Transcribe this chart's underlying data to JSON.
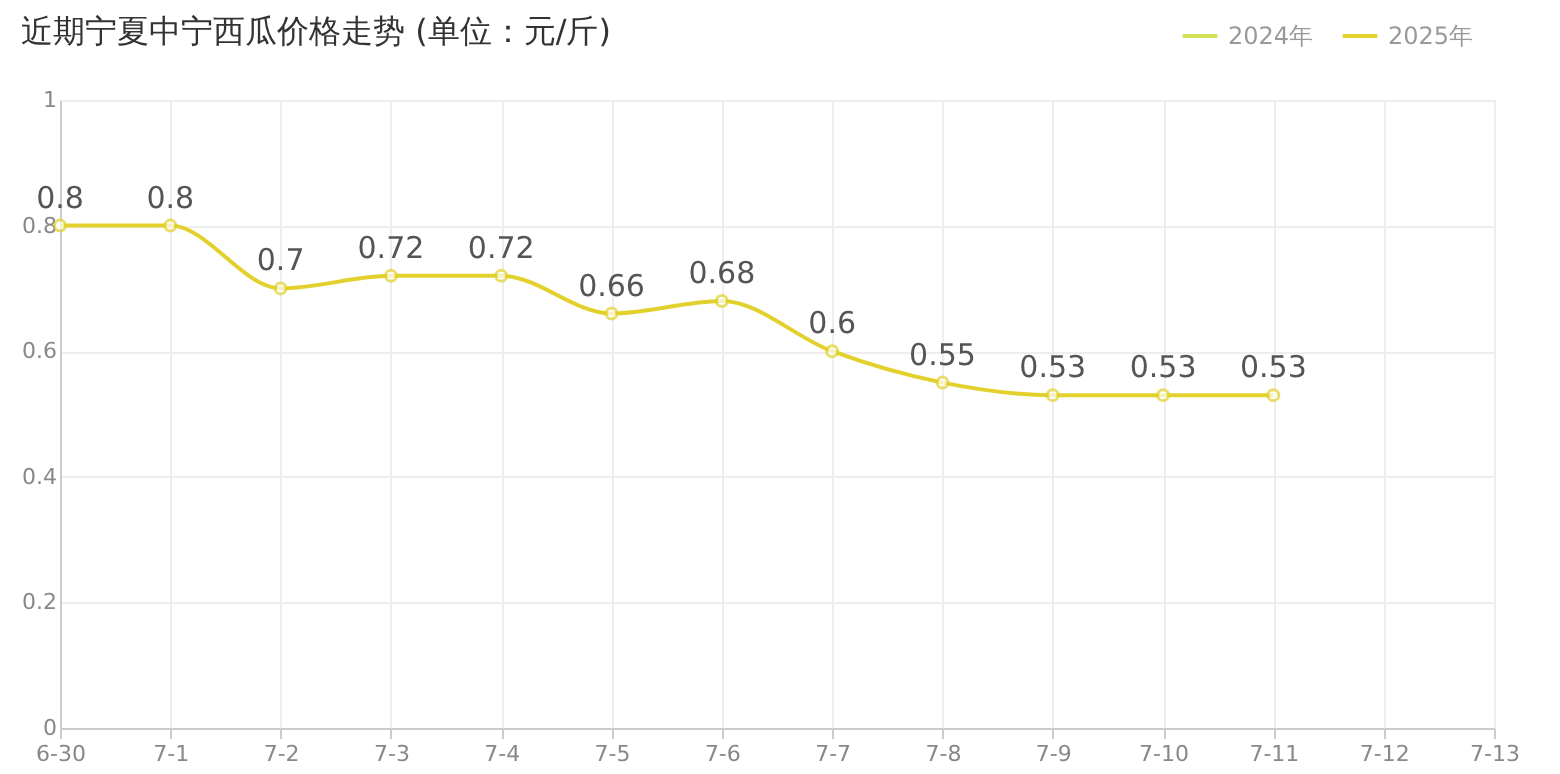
{
  "chart_data": {
    "type": "line",
    "title": "近期宁夏中宁西瓜价格走势 (单位：元/斤)",
    "categories": [
      "6-30",
      "7-1",
      "7-2",
      "7-3",
      "7-4",
      "7-5",
      "7-6",
      "7-7",
      "7-8",
      "7-9",
      "7-10",
      "7-11",
      "7-12",
      "7-13"
    ],
    "series": [
      {
        "name": "2024年",
        "color": "#d4e157",
        "values": [
          null,
          null,
          null,
          null,
          null,
          null,
          null,
          null,
          null,
          null,
          null,
          null,
          null,
          null
        ]
      },
      {
        "name": "2025年",
        "color": "#e2d12c",
        "values": [
          0.8,
          0.8,
          0.7,
          0.72,
          0.72,
          0.66,
          0.68,
          0.6,
          0.55,
          0.53,
          0.53,
          0.53,
          null,
          null
        ]
      }
    ],
    "ylim": [
      0,
      1
    ],
    "yticks": [
      0,
      0.2,
      0.4,
      0.6,
      0.8,
      1
    ],
    "grid": true,
    "legend": "top right",
    "marker": "circle",
    "line_style": "solid",
    "data_labels": true
  }
}
